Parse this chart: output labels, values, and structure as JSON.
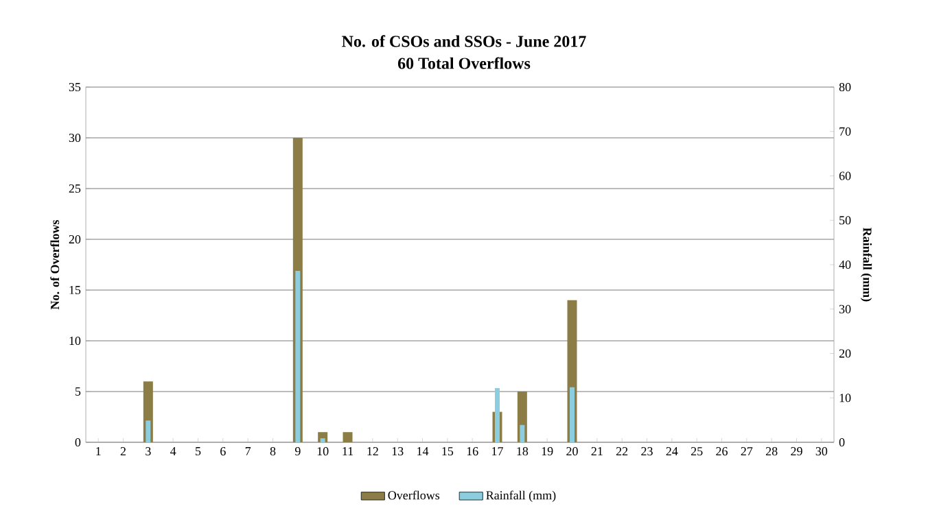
{
  "chart_data": {
    "type": "bar",
    "title": "No. of CSOs and SSOs - June 2017",
    "subtitle": "60 Total Overflows",
    "ylabel": "No. of Overflows",
    "y2label": "Rainfall (mm)",
    "categories": [
      "1",
      "2",
      "3",
      "4",
      "5",
      "6",
      "7",
      "8",
      "9",
      "10",
      "11",
      "12",
      "13",
      "14",
      "15",
      "16",
      "17",
      "18",
      "19",
      "20",
      "21",
      "22",
      "23",
      "24",
      "25",
      "26",
      "27",
      "28",
      "29",
      "30"
    ],
    "series": [
      {
        "name": "Overflows",
        "color": "#8b7d45",
        "values": [
          0,
          0,
          6,
          0,
          0,
          0,
          0,
          0,
          30,
          1,
          1,
          0,
          0,
          0,
          0,
          0,
          3,
          5,
          0,
          14,
          0,
          0,
          0,
          0,
          0,
          0,
          0,
          0,
          0,
          0
        ]
      },
      {
        "name": "Rainfall (mm)",
        "color": "#8ccde0",
        "axis": "y2",
        "values": [
          0,
          0,
          4.9,
          0,
          0,
          0,
          0,
          0,
          38.6,
          0.9,
          0,
          0,
          0,
          0,
          0,
          0,
          12.2,
          3.9,
          0,
          12.4,
          0,
          0,
          0,
          0,
          0,
          0,
          0,
          0,
          0,
          0
        ]
      }
    ],
    "ylim": [
      0,
      35
    ],
    "yticks": [
      0,
      5,
      10,
      15,
      20,
      25,
      30,
      35
    ],
    "y2lim": [
      0,
      80
    ],
    "y2ticks": [
      0,
      10,
      20,
      30,
      40,
      50,
      60,
      70,
      80
    ],
    "grid": "y",
    "legend": "bottom"
  }
}
